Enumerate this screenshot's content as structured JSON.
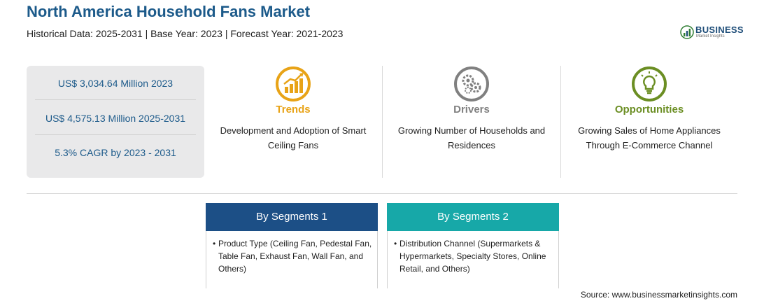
{
  "header": {
    "title": "North America Household Fans Market",
    "subtitle": "Historical Data: 2025-2031 | Base Year: 2023 | Forecast Year: 2021-2023"
  },
  "logo": {
    "word": "BUSINESS",
    "sub": "Market Insights"
  },
  "stats": [
    "US$ 3,034.64 Million 2023",
    "US$ 4,575.13 Million 2025-2031",
    "5.3% CAGR by 2023 - 2031"
  ],
  "columns": [
    {
      "icon": "chart-growth-icon",
      "heading": "Trends",
      "color": "#e8a317",
      "text": "Development and Adoption of Smart Ceiling Fans"
    },
    {
      "icon": "gears-icon",
      "heading": "Drivers",
      "color": "#808080",
      "text": "Growing Number of Households and Residences"
    },
    {
      "icon": "lightbulb-icon",
      "heading": "Opportunities",
      "color": "#6b8e23",
      "text": "Growing Sales of Home Appliances Through E-Commerce Channel"
    }
  ],
  "segments": [
    {
      "title": "By Segments 1",
      "color": "#1c4f86",
      "bullet": "•",
      "text": "Product Type (Ceiling Fan, Pedestal Fan, Table Fan, Exhaust Fan, Wall Fan, and Others)"
    },
    {
      "title": "By Segments 2",
      "color": "#17a8a8",
      "bullet": "•",
      "text": "Distribution Channel (Supermarkets & Hypermarkets, Specialty Stores, Online Retail, and Others)"
    }
  ],
  "source": "Source: www.businessmarketinsights.com"
}
